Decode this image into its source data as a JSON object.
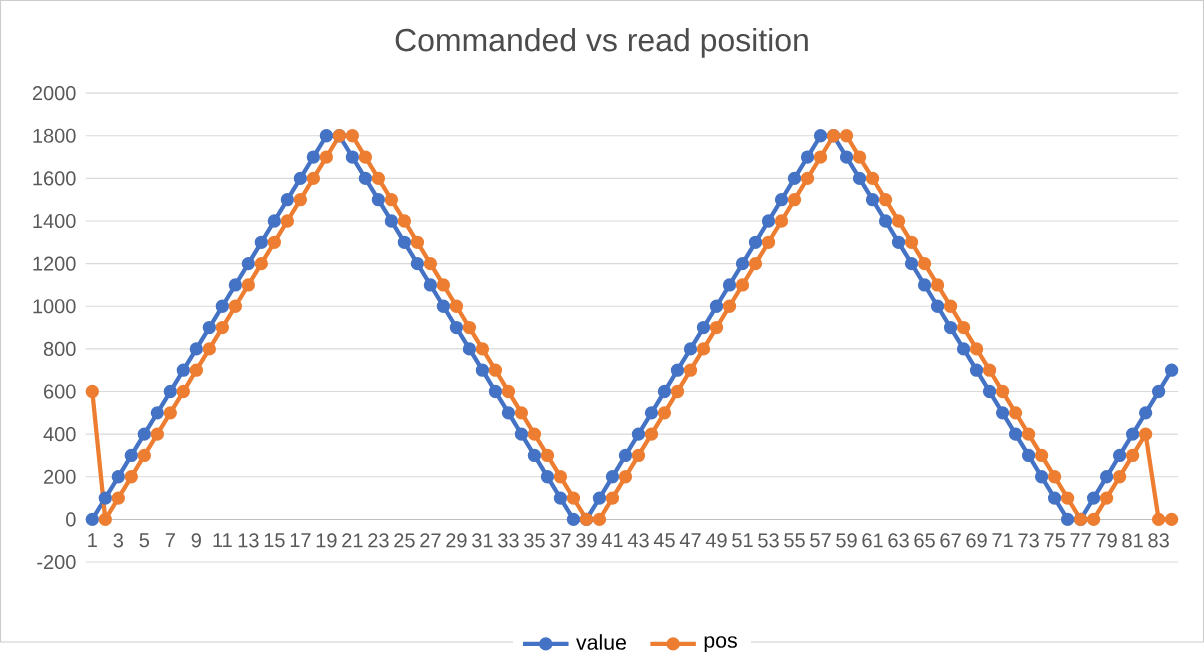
{
  "chart_data": {
    "type": "line",
    "title": "Commanded vs read position",
    "categories": [
      "1",
      null,
      "3",
      null,
      "5",
      null,
      "7",
      null,
      "9",
      null,
      "11",
      null,
      "13",
      null,
      "15",
      null,
      "17",
      null,
      "19",
      null,
      "21",
      null,
      "23",
      null,
      "25",
      null,
      "27",
      null,
      "29",
      null,
      "31",
      null,
      "33",
      null,
      "35",
      null,
      "37",
      null,
      "39",
      null,
      "41",
      null,
      "43",
      null,
      "45",
      null,
      "47",
      null,
      "49",
      null,
      "51",
      null,
      "53",
      null,
      "55",
      null,
      "57",
      null,
      "59",
      null,
      "61",
      null,
      "63",
      null,
      "65",
      null,
      "67",
      null,
      "69",
      null,
      "71",
      null,
      "73",
      null,
      "75",
      null,
      "77",
      null,
      "79",
      null,
      "81",
      null,
      "83",
      null
    ],
    "series": [
      {
        "name": "value",
        "color": "#4472c4",
        "values": [
          0,
          100,
          200,
          300,
          400,
          500,
          600,
          700,
          800,
          900,
          1000,
          1100,
          1200,
          1300,
          1400,
          1500,
          1600,
          1700,
          1800,
          1800,
          1700,
          1600,
          1500,
          1400,
          1300,
          1200,
          1100,
          1000,
          900,
          800,
          700,
          600,
          500,
          400,
          300,
          200,
          100,
          0,
          0,
          100,
          200,
          300,
          400,
          500,
          600,
          700,
          800,
          900,
          1000,
          1100,
          1200,
          1300,
          1400,
          1500,
          1600,
          1700,
          1800,
          1800,
          1700,
          1600,
          1500,
          1400,
          1300,
          1200,
          1100,
          1000,
          900,
          800,
          700,
          600,
          500,
          400,
          300,
          200,
          100,
          0,
          0,
          100,
          200,
          300,
          400,
          500,
          600,
          700
        ]
      },
      {
        "name": "pos",
        "color": "#ed7d31",
        "values": [
          600,
          0,
          100,
          200,
          300,
          400,
          500,
          600,
          700,
          800,
          900,
          1000,
          1100,
          1200,
          1300,
          1400,
          1500,
          1600,
          1700,
          1800,
          1800,
          1700,
          1600,
          1500,
          1400,
          1300,
          1200,
          1100,
          1000,
          900,
          800,
          700,
          600,
          500,
          400,
          300,
          200,
          100,
          0,
          0,
          100,
          200,
          300,
          400,
          500,
          600,
          700,
          800,
          900,
          1000,
          1100,
          1200,
          1300,
          1400,
          1500,
          1600,
          1700,
          1800,
          1800,
          1700,
          1600,
          1500,
          1400,
          1300,
          1200,
          1100,
          1000,
          900,
          800,
          700,
          600,
          500,
          400,
          300,
          200,
          100,
          0,
          0,
          100,
          200,
          300,
          400,
          0,
          0
        ]
      }
    ],
    "ylim": [
      -200,
      2000
    ],
    "yticks": [
      -200,
      0,
      200,
      400,
      600,
      800,
      1000,
      1200,
      1400,
      1600,
      1800,
      2000
    ],
    "grid": "y",
    "legend": "bottom",
    "marker": "circle",
    "line_style": "solid"
  }
}
